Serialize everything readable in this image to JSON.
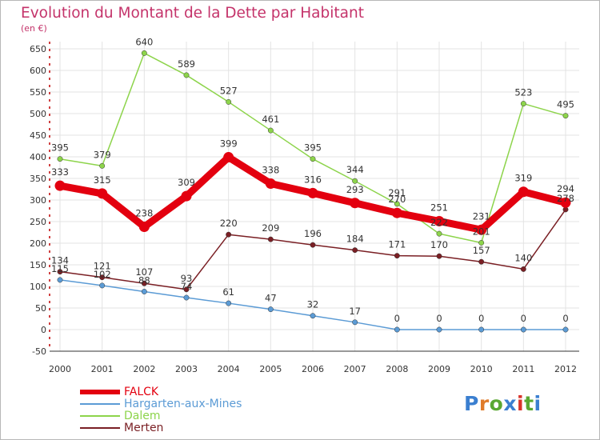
{
  "header": {
    "title": "Evolution du Montant de la Dette par Habitant",
    "unit": "(en €)"
  },
  "logo": {
    "text": "Proxiti",
    "colors": [
      "#3b7fd0",
      "#e07b2a",
      "#5aa832",
      "#3b7fd0",
      "#d9342b",
      "#5aa832",
      "#3b7fd0"
    ]
  },
  "chart_data": {
    "type": "line",
    "x": [
      "2000",
      "2001",
      "2002",
      "2003",
      "2004",
      "2005",
      "2006",
      "2007",
      "2008",
      "2009",
      "2010",
      "2011",
      "2012"
    ],
    "ylim": [
      -50,
      650
    ],
    "yticks": [
      "-50",
      "0",
      "50",
      "100",
      "150",
      "200",
      "250",
      "300",
      "350",
      "400",
      "450",
      "500",
      "550",
      "600",
      "650"
    ],
    "grid": true,
    "legend": "bottom-left",
    "series": [
      {
        "name": "FALCK",
        "color": "#e3000f",
        "values": [
          333,
          315,
          238,
          309,
          399,
          338,
          316,
          293,
          270,
          251,
          231,
          319,
          294
        ]
      },
      {
        "name": "Hargarten-aux-Mines",
        "color": "#5b9bd5",
        "values": [
          115,
          102,
          88,
          74,
          61,
          47,
          32,
          17,
          0,
          0,
          0,
          0,
          0
        ]
      },
      {
        "name": "Dalem",
        "color": "#8dd44b",
        "values": [
          395,
          379,
          640,
          589,
          527,
          461,
          395,
          344,
          291,
          222,
          201,
          523,
          495
        ]
      },
      {
        "name": "Merten",
        "color": "#7a1f24",
        "values": [
          134,
          121,
          107,
          93,
          220,
          209,
          196,
          184,
          171,
          170,
          157,
          140,
          278
        ]
      }
    ]
  }
}
